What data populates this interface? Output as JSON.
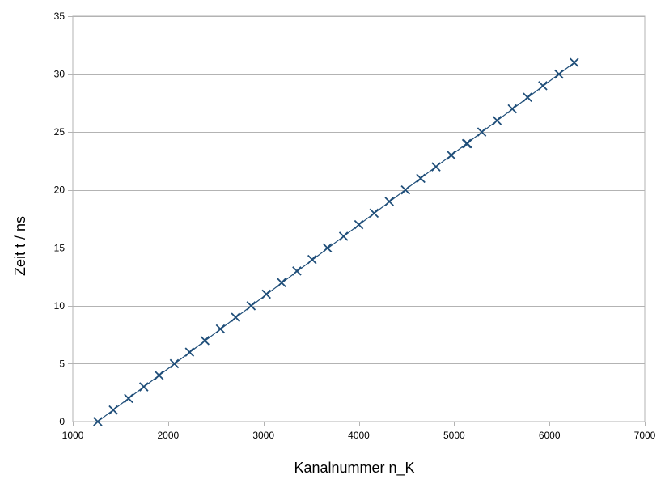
{
  "chart_data": {
    "type": "scatter",
    "xlabel": "Kanalnummer n_K",
    "ylabel": "Zeit t / ns",
    "xlim": [
      1000,
      7000
    ],
    "ylim": [
      0,
      35
    ],
    "xticks": [
      1000,
      2000,
      3000,
      4000,
      5000,
      6000,
      7000
    ],
    "yticks": [
      0,
      5,
      10,
      15,
      20,
      25,
      30,
      35
    ],
    "grid": "horizontal",
    "legend": "none",
    "marker": "x",
    "color": "#1f4e79",
    "series": [
      {
        "points": [
          [
            1262,
            0
          ],
          [
            1425,
            1
          ],
          [
            1585,
            2
          ],
          [
            1745,
            3
          ],
          [
            1905,
            4
          ],
          [
            2065,
            5
          ],
          [
            2225,
            6
          ],
          [
            2385,
            7
          ],
          [
            2548,
            8
          ],
          [
            2708,
            9
          ],
          [
            2870,
            10
          ],
          [
            3030,
            11
          ],
          [
            3190,
            12
          ],
          [
            3350,
            13
          ],
          [
            3510,
            14
          ],
          [
            3670,
            15
          ],
          [
            3840,
            16
          ],
          [
            4000,
            17
          ],
          [
            4160,
            18
          ],
          [
            4320,
            19
          ],
          [
            4490,
            20
          ],
          [
            4650,
            21
          ],
          [
            4810,
            22
          ],
          [
            4970,
            23
          ],
          [
            5130,
            24
          ],
          [
            5140,
            24
          ],
          [
            5290,
            25
          ],
          [
            5450,
            26
          ],
          [
            5610,
            27
          ],
          [
            5770,
            28
          ],
          [
            5930,
            29
          ],
          [
            6100,
            30
          ],
          [
            6260,
            31
          ]
        ]
      }
    ],
    "trendline": {
      "type": "linear",
      "from": [
        1262,
        0
      ],
      "to": [
        6260,
        31
      ]
    }
  }
}
